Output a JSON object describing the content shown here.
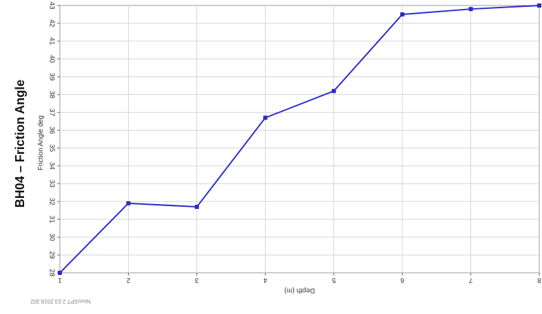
{
  "chart_data": {
    "type": "line",
    "title": "BH04 – Friction Angle",
    "xlabel": "Depth (m)",
    "ylabel": "Friction Angle deg",
    "x": [
      1,
      2,
      3,
      4,
      5,
      6,
      7,
      8
    ],
    "xlim": [
      1,
      8
    ],
    "ylim": [
      28,
      43
    ],
    "y_ticks": [
      28,
      29,
      30,
      31,
      32,
      33,
      34,
      35,
      36,
      37,
      38,
      39,
      40,
      41,
      42,
      43
    ],
    "grid": true,
    "series": [
      {
        "values": [
          28.0,
          31.9,
          31.7,
          36.7,
          38.2,
          42.5,
          42.8,
          43.0
        ],
        "color": "#2a2acc"
      }
    ]
  },
  "footer": {
    "text": "NovoSPT 2.53.2018.302"
  }
}
